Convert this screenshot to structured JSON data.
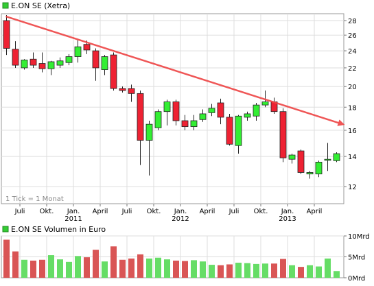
{
  "price_legend": "E.ON SE (Xetra)",
  "volume_legend": "E.ON SE Volumen in Euro",
  "tick_note": "1 Tick = 1 Monat",
  "colors": {
    "up": "#33ee33",
    "down": "#ee2233",
    "volume_up": "#66dd66",
    "volume_down": "#d95555",
    "trendline": "#ee4444",
    "grid": "#dddddd",
    "legend_box": "#33cc33"
  },
  "chart_data": [
    {
      "type": "candlestick",
      "title": "E.ON SE (Xetra)",
      "note": "1 Tick = 1 Monat",
      "y_ticks": [
        12,
        14,
        16,
        18,
        20,
        22,
        24,
        26,
        28
      ],
      "ylim": [
        11,
        29
      ],
      "y_scale": "log",
      "grid": true,
      "month_labels": [
        {
          "idx": 2,
          "label": "Juli"
        },
        {
          "idx": 5,
          "label": "Okt."
        },
        {
          "idx": 8,
          "label": "Jan."
        },
        {
          "idx": 11,
          "label": "April"
        },
        {
          "idx": 14,
          "label": "Juli"
        },
        {
          "idx": 17,
          "label": "Okt."
        },
        {
          "idx": 20,
          "label": "Jan."
        },
        {
          "idx": 23,
          "label": "April"
        },
        {
          "idx": 26,
          "label": "Juli"
        },
        {
          "idx": 29,
          "label": "Okt."
        },
        {
          "idx": 32,
          "label": "Jan."
        },
        {
          "idx": 35,
          "label": "April"
        }
      ],
      "year_labels": [
        {
          "idx": 8,
          "label": "2011"
        },
        {
          "idx": 20,
          "label": "2012"
        },
        {
          "idx": 32,
          "label": "2013"
        }
      ],
      "candles": [
        {
          "o": 28.0,
          "h": 28.8,
          "l": 23.5,
          "c": 24.3
        },
        {
          "o": 24.2,
          "h": 25.2,
          "l": 22.0,
          "c": 22.3
        },
        {
          "o": 22.0,
          "h": 23.0,
          "l": 21.8,
          "c": 22.9
        },
        {
          "o": 23.0,
          "h": 23.8,
          "l": 22.0,
          "c": 22.3
        },
        {
          "o": 22.5,
          "h": 23.8,
          "l": 21.5,
          "c": 21.9
        },
        {
          "o": 21.9,
          "h": 22.8,
          "l": 21.2,
          "c": 22.7
        },
        {
          "o": 22.3,
          "h": 23.2,
          "l": 22.0,
          "c": 22.8
        },
        {
          "o": 22.6,
          "h": 23.6,
          "l": 22.3,
          "c": 23.3
        },
        {
          "o": 23.3,
          "h": 25.4,
          "l": 22.6,
          "c": 24.5
        },
        {
          "o": 24.8,
          "h": 25.3,
          "l": 23.6,
          "c": 24.1
        },
        {
          "o": 24.0,
          "h": 24.3,
          "l": 20.6,
          "c": 22.0
        },
        {
          "o": 21.8,
          "h": 23.5,
          "l": 21.2,
          "c": 23.3
        },
        {
          "o": 23.5,
          "h": 23.8,
          "l": 19.6,
          "c": 19.8
        },
        {
          "o": 19.8,
          "h": 20.0,
          "l": 19.4,
          "c": 19.6
        },
        {
          "o": 19.8,
          "h": 20.2,
          "l": 18.5,
          "c": 19.3
        },
        {
          "o": 19.3,
          "h": 19.6,
          "l": 13.4,
          "c": 15.2
        },
        {
          "o": 15.2,
          "h": 16.8,
          "l": 12.7,
          "c": 16.5
        },
        {
          "o": 16.2,
          "h": 17.8,
          "l": 16.0,
          "c": 17.6
        },
        {
          "o": 17.6,
          "h": 18.7,
          "l": 16.4,
          "c": 18.5
        },
        {
          "o": 18.5,
          "h": 18.7,
          "l": 16.4,
          "c": 16.8
        },
        {
          "o": 16.8,
          "h": 17.3,
          "l": 16.0,
          "c": 16.3
        },
        {
          "o": 16.3,
          "h": 17.3,
          "l": 16.0,
          "c": 16.8
        },
        {
          "o": 16.9,
          "h": 17.8,
          "l": 16.7,
          "c": 17.4
        },
        {
          "o": 17.5,
          "h": 18.3,
          "l": 17.2,
          "c": 17.9
        },
        {
          "o": 18.4,
          "h": 18.8,
          "l": 16.5,
          "c": 17.1
        },
        {
          "o": 17.1,
          "h": 17.4,
          "l": 14.8,
          "c": 14.9
        },
        {
          "o": 14.8,
          "h": 17.3,
          "l": 14.2,
          "c": 17.2
        },
        {
          "o": 17.1,
          "h": 17.6,
          "l": 16.8,
          "c": 17.4
        },
        {
          "o": 17.2,
          "h": 18.4,
          "l": 16.8,
          "c": 18.2
        },
        {
          "o": 18.2,
          "h": 19.6,
          "l": 18.0,
          "c": 18.5
        },
        {
          "o": 18.5,
          "h": 18.9,
          "l": 17.4,
          "c": 17.6
        },
        {
          "o": 17.6,
          "h": 17.9,
          "l": 13.6,
          "c": 13.9
        },
        {
          "o": 13.8,
          "h": 14.2,
          "l": 13.5,
          "c": 14.1
        },
        {
          "o": 14.4,
          "h": 14.5,
          "l": 12.8,
          "c": 12.9
        },
        {
          "o": 12.8,
          "h": 13.0,
          "l": 12.5,
          "c": 12.9
        },
        {
          "o": 12.8,
          "h": 13.7,
          "l": 12.6,
          "c": 13.6
        },
        {
          "o": 13.8,
          "h": 15.0,
          "l": 13.0,
          "c": 13.8
        },
        {
          "o": 13.7,
          "h": 14.3,
          "l": 13.6,
          "c": 14.2
        }
      ],
      "trendline": {
        "from": {
          "idx": 0,
          "value": 28.6
        },
        "to": {
          "idx": 37.7,
          "value": 16.5
        }
      }
    },
    {
      "type": "bar",
      "title": "E.ON SE Volumen in Euro",
      "y_ticks": [
        "0Mrd",
        "5Mrd",
        "10Mrd"
      ],
      "y_tick_values": [
        0,
        5,
        10
      ],
      "ylim": [
        0,
        10
      ],
      "unit": "Mrd",
      "values": [
        9.1,
        6.3,
        4.3,
        4.1,
        4.3,
        5.4,
        4.4,
        3.8,
        5.2,
        4.9,
        6.7,
        3.9,
        7.5,
        4.3,
        4.6,
        5.6,
        4.6,
        4.8,
        4.4,
        4.1,
        4.0,
        4.2,
        3.9,
        3.1,
        3.0,
        3.2,
        3.6,
        3.5,
        3.3,
        3.4,
        3.4,
        4.5,
        3.0,
        2.6,
        3.0,
        2.7,
        4.6,
        1.6
      ]
    }
  ]
}
